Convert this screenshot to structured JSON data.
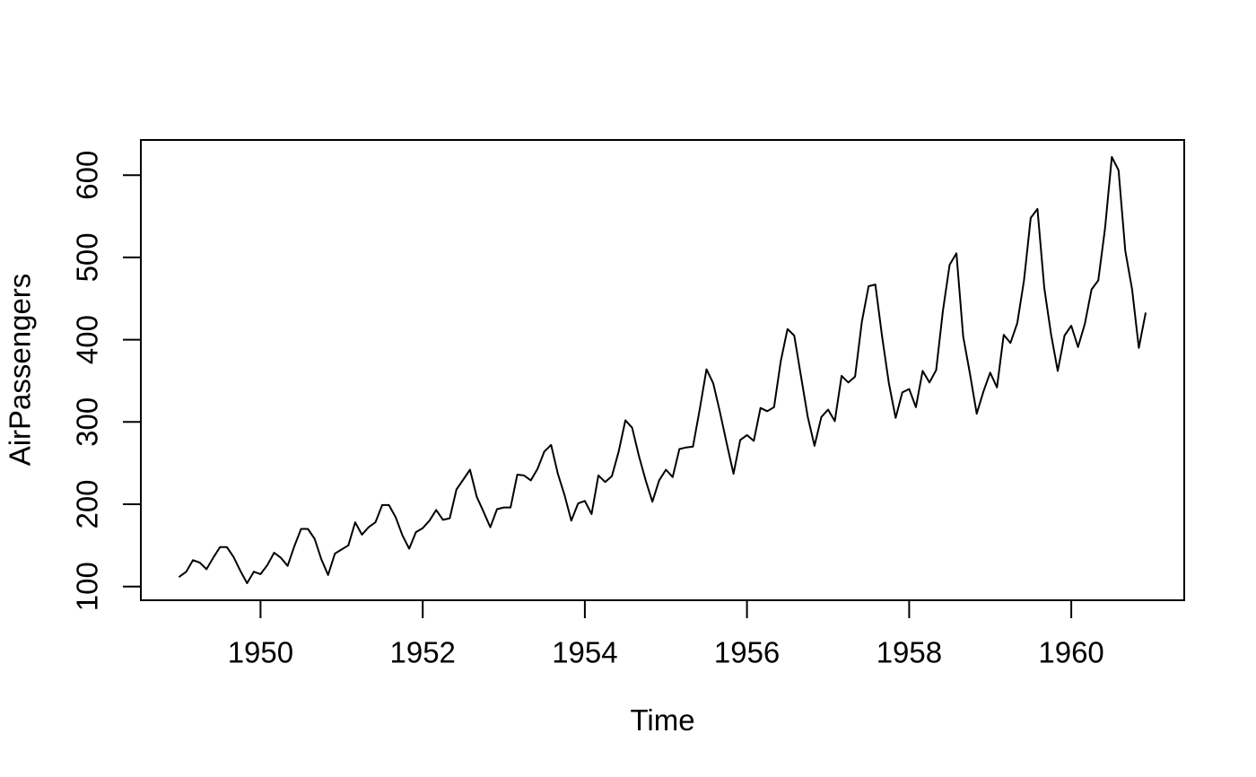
{
  "figure": {
    "background": "#ffffff"
  },
  "chart_data": {
    "type": "line",
    "title": "",
    "xlabel": "Time",
    "ylabel": "AirPassengers",
    "legend": "none",
    "grid": false,
    "line_color": "#000000",
    "axis_color": "#000000",
    "x_start_year": 1949,
    "frequency_per_year": 12,
    "xlim": [
      1948.5233,
      1961.3933
    ],
    "ylim": [
      83.28,
      642.72
    ],
    "x_ticks": [
      1950,
      1952,
      1954,
      1956,
      1958,
      1960
    ],
    "y_ticks": [
      100,
      200,
      300,
      400,
      500,
      600
    ],
    "series": [
      {
        "name": "AirPassengers",
        "values": [
          112,
          118,
          132,
          129,
          121,
          135,
          148,
          148,
          136,
          119,
          104,
          118,
          115,
          126,
          141,
          135,
          125,
          149,
          170,
          170,
          158,
          133,
          114,
          140,
          145,
          150,
          178,
          163,
          172,
          178,
          199,
          199,
          184,
          162,
          146,
          166,
          171,
          180,
          193,
          181,
          183,
          218,
          230,
          242,
          209,
          191,
          172,
          194,
          196,
          196,
          236,
          235,
          229,
          243,
          264,
          272,
          237,
          211,
          180,
          201,
          204,
          188,
          235,
          227,
          234,
          264,
          302,
          293,
          259,
          229,
          203,
          229,
          242,
          233,
          267,
          269,
          270,
          315,
          364,
          347,
          312,
          274,
          237,
          278,
          284,
          277,
          317,
          313,
          318,
          374,
          413,
          405,
          355,
          306,
          271,
          306,
          315,
          301,
          356,
          348,
          355,
          422,
          465,
          467,
          404,
          347,
          305,
          336,
          340,
          318,
          362,
          348,
          363,
          435,
          491,
          505,
          404,
          359,
          310,
          337,
          360,
          342,
          406,
          396,
          420,
          472,
          548,
          559,
          463,
          407,
          362,
          405,
          417,
          391,
          419,
          461,
          472,
          535,
          622,
          606,
          508,
          461,
          390,
          432
        ]
      }
    ]
  }
}
